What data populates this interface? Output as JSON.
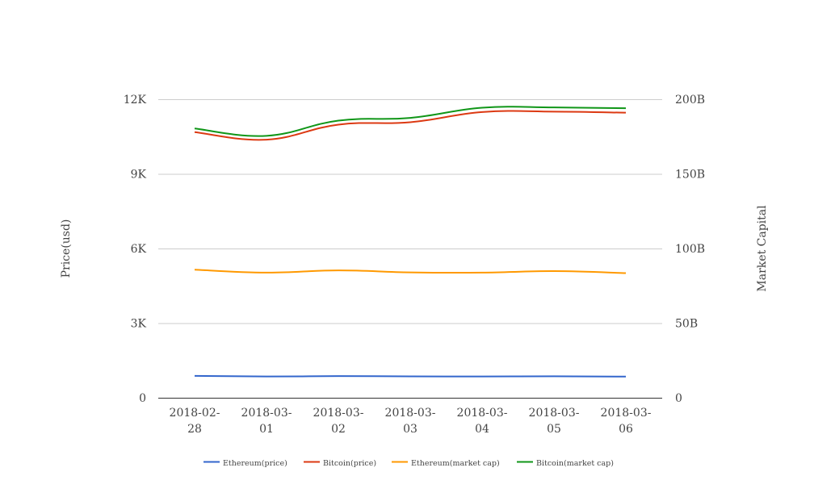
{
  "chart_data": {
    "type": "line",
    "title": "",
    "categories": [
      "2018-02-28",
      "2018-03-01",
      "2018-03-02",
      "2018-03-03",
      "2018-03-04",
      "2018-03-05",
      "2018-03-06"
    ],
    "category_label_lines": [
      [
        "2018-02-",
        "28"
      ],
      [
        "2018-03-",
        "01"
      ],
      [
        "2018-03-",
        "02"
      ],
      [
        "2018-03-",
        "03"
      ],
      [
        "2018-03-",
        "04"
      ],
      [
        "2018-03-",
        "05"
      ],
      [
        "2018-03-",
        "06"
      ]
    ],
    "ylabel": "Price(usd)",
    "y2label": "Market Capital",
    "ylim": [
      0,
      12000
    ],
    "y2lim": [
      0,
      200000000000
    ],
    "yticks": [
      0,
      3000,
      6000,
      9000,
      12000
    ],
    "ytick_labels": [
      "0",
      "3K",
      "6K",
      "9K",
      "12K"
    ],
    "y2ticks": [
      0,
      50000000000,
      100000000000,
      150000000000,
      200000000000
    ],
    "y2tick_labels": [
      "0",
      "50B",
      "100B",
      "150B",
      "200B"
    ],
    "grid": true,
    "legend_position": "bottom",
    "series": [
      {
        "name": "Ethereum(price)",
        "axis": "left",
        "color": "#3366cc",
        "values": [
          880,
          855,
          870,
          860,
          855,
          865,
          850
        ]
      },
      {
        "name": "Bitcoin(price)",
        "axis": "right",
        "color": "#dc3912",
        "values": [
          178000000000,
          172900000000,
          183000000000,
          184600000000,
          191400000000,
          191700000000,
          191000000000
        ]
      },
      {
        "name": "Ethereum(market cap)",
        "axis": "left",
        "color": "#ff9900",
        "values": [
          5150,
          5030,
          5120,
          5040,
          5030,
          5090,
          5010
        ]
      },
      {
        "name": "Bitcoin(market cap)",
        "axis": "right",
        "color": "#109618",
        "values": [
          180400000000,
          175500000000,
          185700000000,
          187500000000,
          194300000000,
          194500000000,
          194000000000
        ]
      }
    ]
  }
}
